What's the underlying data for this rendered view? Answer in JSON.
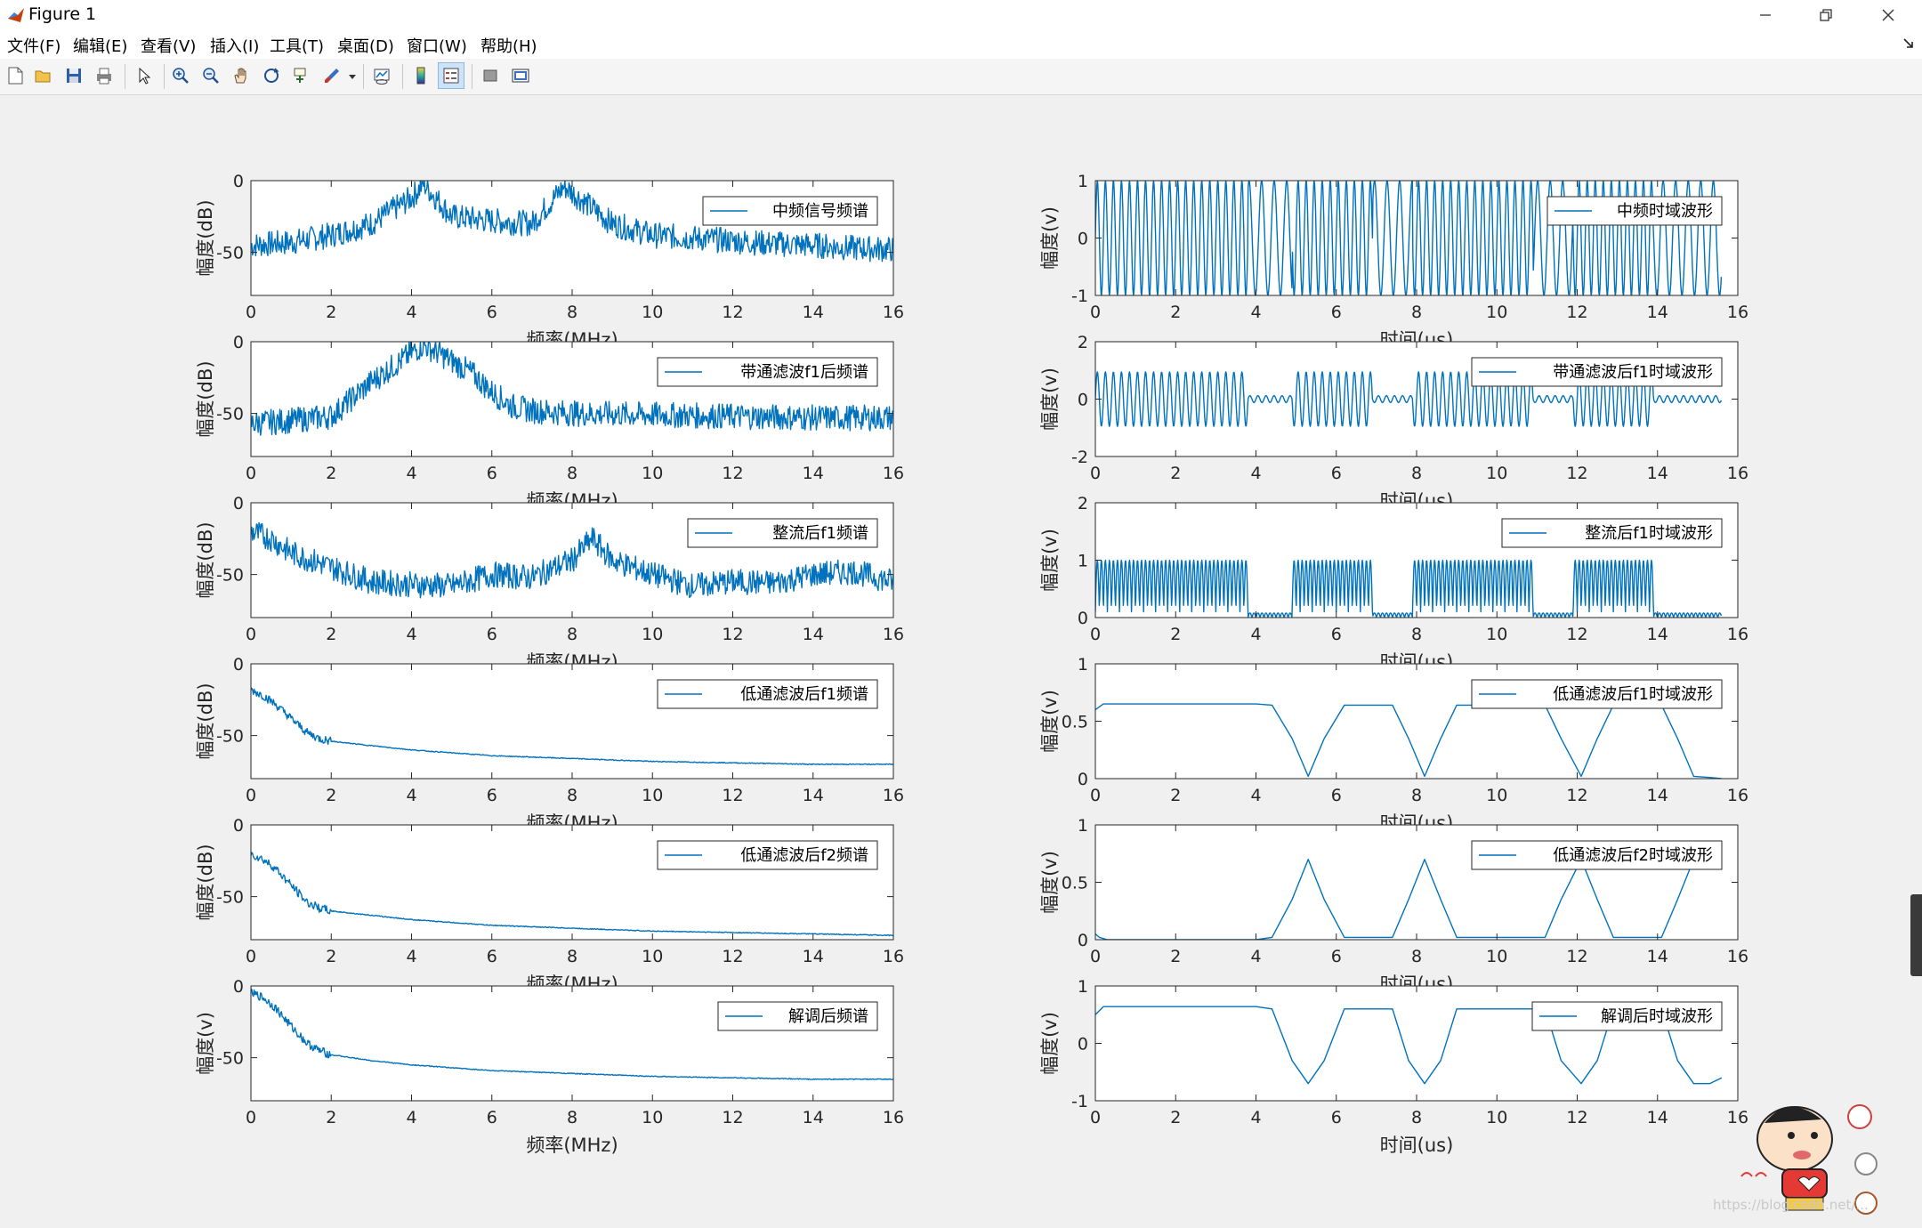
{
  "window": {
    "title": "Figure 1"
  },
  "menu": [
    "文件(F)",
    "编辑(E)",
    "查看(V)",
    "插入(I)",
    "工具(T)",
    "桌面(D)",
    "窗口(W)",
    "帮助(H)"
  ],
  "toolbar_icons": [
    "new-figure-icon",
    "open-file-icon",
    "save-icon",
    "print-icon",
    "edit-plot-arrow-icon",
    "zoom-in-icon",
    "zoom-out-icon",
    "pan-hand-icon",
    "rotate-3d-icon",
    "data-cursor-icon",
    "brush-icon",
    "link-plot-icon",
    "insert-colorbar-icon",
    "insert-legend-icon",
    "hide-plot-tools-icon",
    "show-plot-tools-icon"
  ],
  "colors": {
    "line": "#0072BD",
    "figure_bg": "#f0f0f0",
    "axes_bg": "#ffffff"
  },
  "watermark": "https://blog.csdn.net/...",
  "chart_data": [
    {
      "type": "line",
      "legend": "中频信号频谱",
      "xlabel": "频率(MHz)",
      "ylabel": "幅度(dB)",
      "xlim": [
        0,
        16
      ],
      "ylim": [
        -80,
        0
      ],
      "xticks": [
        0,
        2,
        4,
        6,
        8,
        10,
        12,
        14,
        16
      ],
      "yticks": [
        0,
        -50
      ],
      "ytick_labels": [
        "0",
        "-50"
      ],
      "series": [
        {
          "x": [
            0,
            1,
            2,
            3,
            4,
            4.3,
            5,
            6,
            7,
            7.8,
            9,
            10,
            11,
            12,
            13,
            14,
            15,
            16
          ],
          "y": [
            -45,
            -43,
            -38,
            -30,
            -12,
            -2,
            -25,
            -28,
            -30,
            -4,
            -30,
            -38,
            -40,
            -42,
            -44,
            -45,
            -47,
            -48
          ]
        }
      ]
    },
    {
      "type": "line",
      "legend": "中频时域波形",
      "xlabel": "时间(us)",
      "ylabel": "幅度(v)",
      "xlim": [
        0,
        16
      ],
      "ylim": [
        -1,
        1
      ],
      "xticks": [
        0,
        2,
        4,
        6,
        8,
        10,
        12,
        14,
        16
      ],
      "yticks": [
        1,
        0,
        -1
      ],
      "ytick_labels": [
        "1",
        "0",
        "-1"
      ],
      "series": [
        {
          "x": [
            0,
            15.6
          ],
          "y": [
            -1,
            1
          ],
          "form": "dense oscillation, amplitude 1, frequency alternating between f1 and f2"
        }
      ]
    },
    {
      "type": "line",
      "legend": "带通滤波f1后频谱",
      "xlabel": "频率(MHz)",
      "ylabel": "幅度(dB)",
      "xlim": [
        0,
        16
      ],
      "ylim": [
        -80,
        0
      ],
      "xticks": [
        0,
        2,
        4,
        6,
        8,
        10,
        12,
        14,
        16
      ],
      "yticks": [
        0,
        -50
      ],
      "ytick_labels": [
        "0",
        "-50"
      ],
      "series": [
        {
          "x": [
            0,
            1,
            2,
            2.5,
            3,
            3.5,
            4,
            4.3,
            4.8,
            5.5,
            6,
            6.5,
            7,
            8,
            10,
            12,
            14,
            16
          ],
          "y": [
            -57,
            -55,
            -52,
            -40,
            -28,
            -18,
            -8,
            -2,
            -10,
            -22,
            -35,
            -45,
            -48,
            -50,
            -51,
            -52,
            -53,
            -53
          ]
        }
      ]
    },
    {
      "type": "line",
      "legend": "带通滤波后f1时域波形",
      "xlabel": "时间(us)",
      "ylabel": "幅度(v)",
      "xlim": [
        0,
        16
      ],
      "ylim": [
        -2,
        2
      ],
      "xticks": [
        0,
        2,
        4,
        6,
        8,
        10,
        12,
        14,
        16
      ],
      "yticks": [
        2,
        0,
        -2
      ],
      "ytick_labels": [
        "2",
        "0",
        "-2"
      ],
      "series": [
        {
          "x": [
            0,
            3.8,
            4.9,
            6.9,
            7.9,
            10.9,
            11.9,
            13.9
          ],
          "y": [
            1,
            0,
            1,
            0,
            1,
            0,
            1,
            0
          ],
          "form": "oscillation amplitude 1 on bursts 0-3.8, 4.9-6.9, 7.9-10.9, 11.9-13.9 us; near 0 elsewhere"
        }
      ]
    },
    {
      "type": "line",
      "legend": "整流后f1频谱",
      "xlabel": "频率(MHz)",
      "ylabel": "幅度(dB)",
      "xlim": [
        0,
        16
      ],
      "ylim": [
        -80,
        0
      ],
      "xticks": [
        0,
        2,
        4,
        6,
        8,
        10,
        12,
        14,
        16
      ],
      "yticks": [
        0,
        -50
      ],
      "ytick_labels": [
        "0",
        "-50"
      ],
      "series": [
        {
          "x": [
            0,
            0.5,
            1,
            2,
            3,
            4,
            5,
            6,
            7,
            8,
            8.5,
            9,
            10,
            11,
            12,
            13,
            14,
            15,
            16
          ],
          "y": [
            -20,
            -25,
            -35,
            -45,
            -55,
            -57,
            -58,
            -50,
            -52,
            -40,
            -25,
            -40,
            -50,
            -58,
            -55,
            -56,
            -50,
            -48,
            -55
          ]
        }
      ]
    },
    {
      "type": "line",
      "legend": "整流后f1时域波形",
      "xlabel": "时间(us)",
      "ylabel": "幅度(v)",
      "xlim": [
        0,
        16
      ],
      "ylim": [
        0,
        2
      ],
      "xticks": [
        0,
        2,
        4,
        6,
        8,
        10,
        12,
        14,
        16
      ],
      "yticks": [
        2,
        1,
        0
      ],
      "ytick_labels": [
        "2",
        "1",
        "0"
      ],
      "series": [
        {
          "x": [
            0,
            3.8,
            4.9,
            6.9,
            7.9,
            10.9,
            11.9,
            13.9
          ],
          "y": [
            1,
            0,
            1,
            0,
            1,
            0,
            1,
            0
          ],
          "form": "rectified bursts between 0.1 and 1 on 0-3.8, 4.9-6.9, 7.9-10.9, 11.9-13.9 us; near 0 elsewhere"
        }
      ]
    },
    {
      "type": "line",
      "legend": "低通滤波后f1频谱",
      "xlabel": "频率(MHz)",
      "ylabel": "幅度(dB)",
      "xlim": [
        0,
        16
      ],
      "ylim": [
        -80,
        0
      ],
      "xticks": [
        0,
        2,
        4,
        6,
        8,
        10,
        12,
        14,
        16
      ],
      "yticks": [
        0,
        -50
      ],
      "ytick_labels": [
        "0",
        "-50"
      ],
      "series": [
        {
          "x": [
            0,
            0.3,
            0.6,
            1,
            1.4,
            1.7,
            2,
            3,
            4,
            6,
            8,
            10,
            12,
            14,
            16
          ],
          "y": [
            -18,
            -22,
            -28,
            -38,
            -48,
            -52,
            -54,
            -57,
            -60,
            -64,
            -66,
            -68,
            -69,
            -70,
            -70
          ]
        }
      ]
    },
    {
      "type": "line",
      "legend": "低通滤波后f1时域波形",
      "xlabel": "时间(us)",
      "ylabel": "幅度(v)",
      "xlim": [
        0,
        16
      ],
      "ylim": [
        0,
        1
      ],
      "xticks": [
        0,
        2,
        4,
        6,
        8,
        10,
        12,
        14,
        16
      ],
      "yticks": [
        1,
        0.5,
        0
      ],
      "ytick_labels": [
        "1",
        "0.5",
        "0"
      ],
      "series": [
        {
          "x": [
            0,
            0.2,
            4,
            4.4,
            4.9,
            5.3,
            5.7,
            6.2,
            7.4,
            7.8,
            8.2,
            8.6,
            9,
            11.2,
            11.6,
            12.1,
            12.5,
            12.9,
            13.3,
            14.1,
            14.5,
            14.9,
            15.3,
            15.6
          ],
          "y": [
            0.6,
            0.65,
            0.65,
            0.64,
            0.35,
            0.02,
            0.35,
            0.64,
            0.64,
            0.35,
            0.02,
            0.35,
            0.64,
            0.64,
            0.35,
            0.02,
            0.35,
            0.64,
            0.64,
            0.64,
            0.35,
            0.02,
            0.01,
            0
          ]
        }
      ]
    },
    {
      "type": "line",
      "legend": "低通滤波后f2频谱",
      "xlabel": "频率(MHz)",
      "ylabel": "幅度(dB)",
      "xlim": [
        0,
        16
      ],
      "ylim": [
        -80,
        0
      ],
      "xticks": [
        0,
        2,
        4,
        6,
        8,
        10,
        12,
        14,
        16
      ],
      "yticks": [
        0,
        -50
      ],
      "ytick_labels": [
        "0",
        "-50"
      ],
      "series": [
        {
          "x": [
            0,
            0.3,
            0.6,
            1,
            1.4,
            1.7,
            2,
            3,
            4,
            6,
            8,
            10,
            12,
            14,
            16
          ],
          "y": [
            -20,
            -24,
            -30,
            -42,
            -54,
            -58,
            -60,
            -63,
            -66,
            -70,
            -72,
            -74,
            -75,
            -76,
            -77
          ]
        }
      ]
    },
    {
      "type": "line",
      "legend": "低通滤波后f2时域波形",
      "xlabel": "时间(us)",
      "ylabel": "幅度(v)",
      "xlim": [
        0,
        16
      ],
      "ylim": [
        0,
        1
      ],
      "xticks": [
        0,
        2,
        4,
        6,
        8,
        10,
        12,
        14,
        16
      ],
      "yticks": [
        1,
        0.5,
        0
      ],
      "ytick_labels": [
        "1",
        "0.5",
        "0"
      ],
      "series": [
        {
          "x": [
            0,
            0.1,
            0.3,
            4,
            4.4,
            4.9,
            5.3,
            5.7,
            6.2,
            7.4,
            7.8,
            8.2,
            8.6,
            9,
            11.2,
            11.6,
            12.1,
            12.5,
            12.9,
            13.3,
            14.1,
            14.5,
            14.9,
            15.3,
            15.6
          ],
          "y": [
            0.05,
            0.02,
            0,
            0,
            0.02,
            0.35,
            0.7,
            0.35,
            0.02,
            0.02,
            0.35,
            0.7,
            0.35,
            0.02,
            0.02,
            0.35,
            0.7,
            0.35,
            0.02,
            0.02,
            0.02,
            0.35,
            0.7,
            0.72,
            0.7
          ]
        }
      ]
    },
    {
      "type": "line",
      "legend": "解调后频谱",
      "xlabel": "频率(MHz)",
      "ylabel": "幅度(v)",
      "xlim": [
        0,
        16
      ],
      "ylim": [
        -80,
        0
      ],
      "xticks": [
        0,
        2,
        4,
        6,
        8,
        10,
        12,
        14,
        16
      ],
      "yticks": [
        0,
        -50
      ],
      "ytick_labels": [
        "0",
        "-50"
      ],
      "series": [
        {
          "x": [
            0,
            0.3,
            0.6,
            1,
            1.4,
            1.7,
            2,
            3,
            4,
            6,
            8,
            10,
            12,
            14,
            16
          ],
          "y": [
            -5,
            -8,
            -15,
            -28,
            -40,
            -45,
            -48,
            -52,
            -55,
            -59,
            -61,
            -63,
            -64,
            -65,
            -65
          ]
        }
      ]
    },
    {
      "type": "line",
      "legend": "解调后时域波形",
      "xlabel": "时间(us)",
      "ylabel": "幅度(v)",
      "xlim": [
        0,
        16
      ],
      "ylim": [
        -1,
        1
      ],
      "xticks": [
        0,
        2,
        4,
        6,
        8,
        10,
        12,
        14,
        16
      ],
      "yticks": [
        1,
        0,
        -1
      ],
      "ytick_labels": [
        "1",
        "0",
        "-1"
      ],
      "series": [
        {
          "x": [
            0,
            0.2,
            4,
            4.4,
            4.9,
            5.3,
            5.7,
            6.2,
            7.4,
            7.8,
            8.2,
            8.6,
            9,
            11.2,
            11.6,
            12.1,
            12.5,
            12.9,
            13.3,
            14.1,
            14.5,
            14.9,
            15.3,
            15.6
          ],
          "y": [
            0.5,
            0.64,
            0.64,
            0.6,
            -0.3,
            -0.7,
            -0.3,
            0.6,
            0.6,
            -0.3,
            -0.7,
            -0.3,
            0.6,
            0.6,
            -0.3,
            -0.7,
            -0.3,
            0.6,
            0.6,
            0.6,
            -0.3,
            -0.7,
            -0.7,
            -0.6
          ]
        }
      ]
    }
  ]
}
